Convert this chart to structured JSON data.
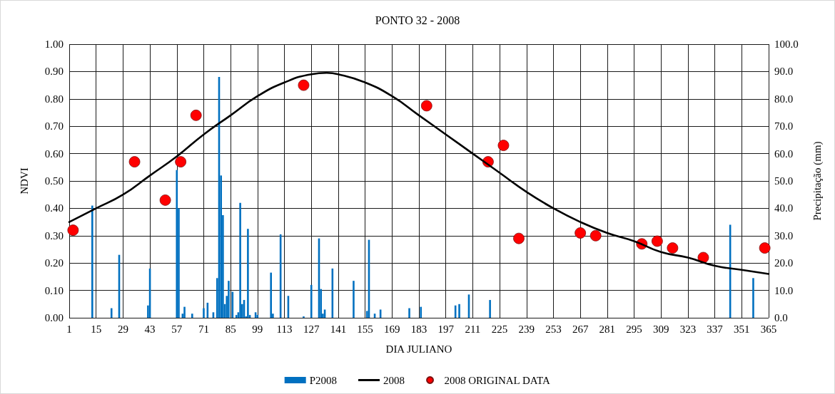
{
  "chart_data": {
    "type": "bar",
    "title": "PONTO 32 - 2008",
    "xlabel": "DIA JULIANO",
    "ylabel": "NDVI",
    "y2label": "Precipitação (mm)",
    "xlim": [
      1,
      365
    ],
    "xticks": [
      1,
      15,
      29,
      43,
      57,
      71,
      85,
      99,
      113,
      127,
      141,
      155,
      169,
      183,
      197,
      211,
      225,
      239,
      253,
      267,
      281,
      295,
      309,
      323,
      337,
      351,
      365
    ],
    "ylim": [
      0,
      1
    ],
    "yticks": [
      {
        "value": 0,
        "label": "0.00"
      },
      {
        "value": 0.1,
        "label": "0.10"
      },
      {
        "value": 0.2,
        "label": "0.20"
      },
      {
        "value": 0.3,
        "label": "0.30"
      },
      {
        "value": 0.4,
        "label": "0.40"
      },
      {
        "value": 0.5,
        "label": "0.50"
      },
      {
        "value": 0.6,
        "label": "0.60"
      },
      {
        "value": 0.7,
        "label": "0.70"
      },
      {
        "value": 0.8,
        "label": "0.80"
      },
      {
        "value": 0.9,
        "label": "0.90"
      },
      {
        "value": 1,
        "label": "1.00"
      }
    ],
    "y2lim": [
      0,
      100
    ],
    "y2ticks": [
      {
        "value": 0,
        "label": "0.0"
      },
      {
        "value": 10,
        "label": "10.0"
      },
      {
        "value": 20,
        "label": "20.0"
      },
      {
        "value": 30,
        "label": "30.0"
      },
      {
        "value": 40,
        "label": "40.0"
      },
      {
        "value": 50,
        "label": "50.0"
      },
      {
        "value": 60,
        "label": "60.0"
      },
      {
        "value": 70,
        "label": "70.0"
      },
      {
        "value": 80,
        "label": "80.0"
      },
      {
        "value": 90,
        "label": "90.0"
      },
      {
        "value": 100,
        "label": "100.0"
      }
    ],
    "grid": true,
    "legend": "bottom",
    "series": [
      {
        "name": "P2008",
        "axis": "y2",
        "color": "#0070c0",
        "x": [
          13,
          23,
          27,
          42,
          43,
          57,
          58,
          60,
          61,
          65,
          71,
          73,
          76,
          78,
          79,
          80,
          81,
          82,
          83,
          84,
          86,
          88,
          89,
          90,
          91,
          92,
          93,
          94,
          95,
          98,
          99,
          106,
          107,
          111,
          115,
          123,
          127,
          131,
          132,
          133,
          134,
          138,
          149,
          156,
          157,
          160,
          163,
          178,
          184,
          202,
          204,
          209,
          220,
          345,
          357
        ],
        "values": [
          41,
          3.5,
          23,
          4.5,
          18,
          54,
          40,
          1.5,
          4,
          1.5,
          3.5,
          5.5,
          2,
          14.5,
          88,
          52,
          37.5,
          5,
          8,
          13.5,
          9.5,
          1,
          2,
          42,
          5,
          6.5,
          0.5,
          32.5,
          1,
          2,
          1,
          16.5,
          1.5,
          30.5,
          8,
          0.5,
          12,
          29,
          10.5,
          1.5,
          3,
          18,
          13.5,
          2.5,
          28.5,
          1.5,
          3,
          3.5,
          4,
          4.5,
          5,
          8.5,
          6.5,
          34,
          14.5
        ]
      },
      {
        "name": "2008",
        "type": "line",
        "color": "#000000",
        "marker": "none",
        "x": [
          1,
          15,
          29,
          43,
          57,
          71,
          85,
          99,
          113,
          127,
          135,
          141,
          155,
          169,
          183,
          197,
          211,
          225,
          239,
          253,
          267,
          281,
          295,
          309,
          323,
          337,
          351,
          365
        ],
        "values": [
          0.35,
          0.4,
          0.45,
          0.52,
          0.59,
          0.67,
          0.74,
          0.81,
          0.86,
          0.89,
          0.895,
          0.89,
          0.86,
          0.81,
          0.74,
          0.67,
          0.6,
          0.53,
          0.46,
          0.4,
          0.35,
          0.31,
          0.28,
          0.24,
          0.22,
          0.19,
          0.175,
          0.16
        ]
      },
      {
        "name": "2008 ORIGINAL DATA",
        "type": "scatter",
        "color": "#ff0000",
        "marker": "circle",
        "x": [
          3,
          35,
          51,
          59,
          67,
          123,
          187,
          219,
          227,
          235,
          267,
          275,
          299,
          307,
          315,
          331,
          363
        ],
        "values": [
          0.32,
          0.57,
          0.43,
          0.57,
          0.74,
          0.85,
          0.775,
          0.57,
          0.63,
          0.29,
          0.31,
          0.3,
          0.27,
          0.28,
          0.255,
          0.22,
          0.255
        ]
      }
    ]
  }
}
